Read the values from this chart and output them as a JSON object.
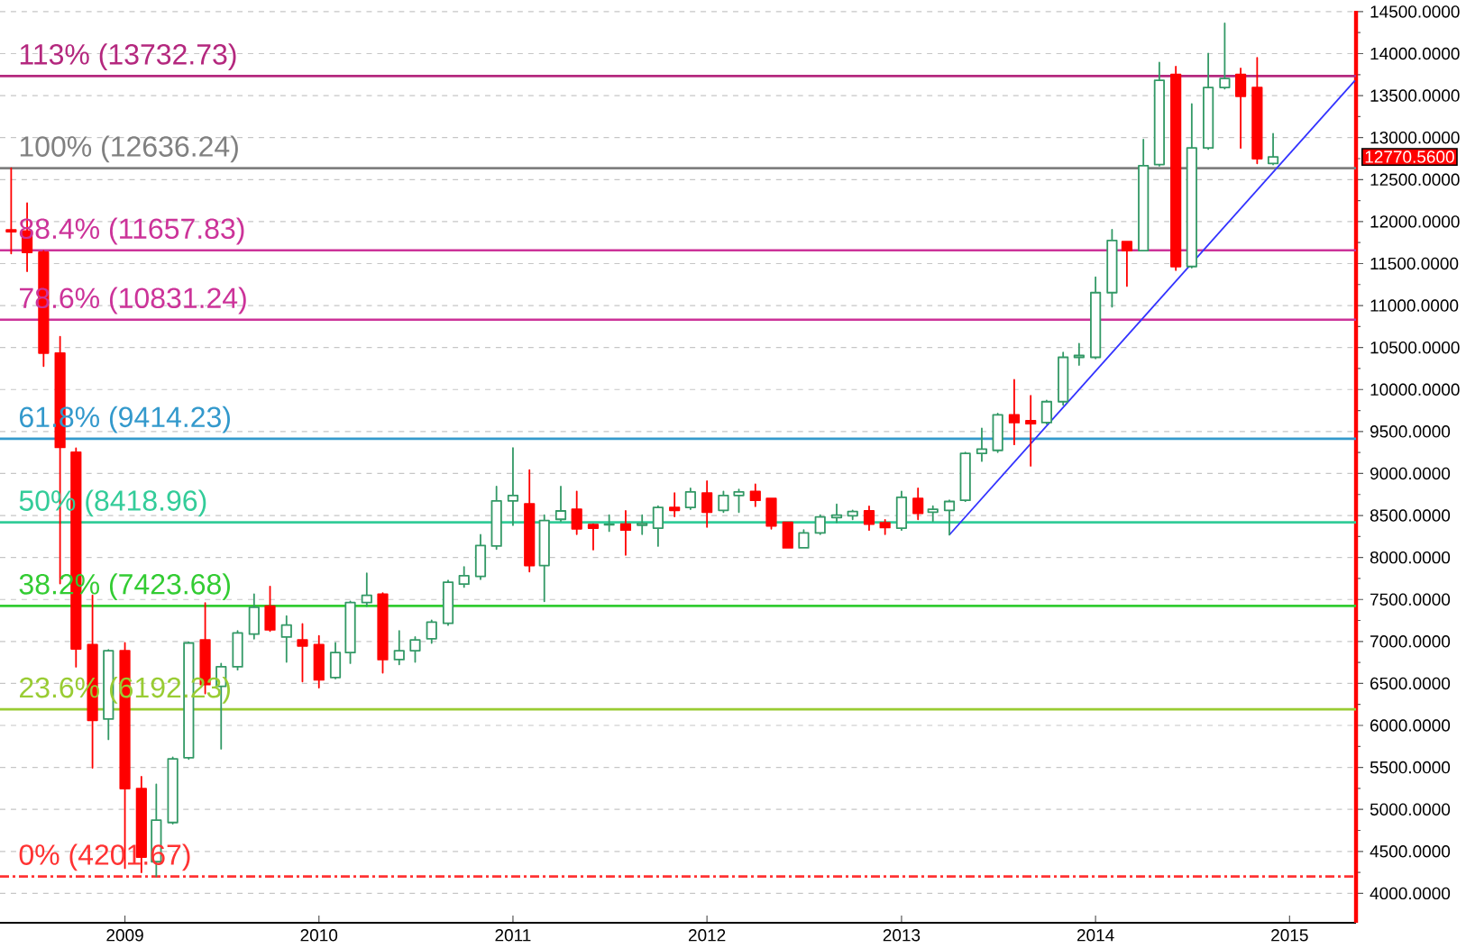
{
  "chart_data": {
    "type": "candlestick",
    "x": [
      "2008-06",
      "2008-07",
      "2008-08",
      "2008-09",
      "2008-10",
      "2008-11",
      "2008-12",
      "2009-01",
      "2009-02",
      "2009-03",
      "2009-04",
      "2009-05",
      "2009-06",
      "2009-07",
      "2009-08",
      "2009-09",
      "2009-10",
      "2009-11",
      "2009-12",
      "2010-01",
      "2010-02",
      "2010-03",
      "2010-04",
      "2010-05",
      "2010-06",
      "2010-07",
      "2010-08",
      "2010-09",
      "2010-10",
      "2010-11",
      "2010-12",
      "2011-01",
      "2011-02",
      "2011-03",
      "2011-04",
      "2011-05",
      "2011-06",
      "2011-07",
      "2011-08",
      "2011-09",
      "2011-10",
      "2011-11",
      "2011-12",
      "2012-01",
      "2012-02",
      "2012-03",
      "2012-04",
      "2012-05",
      "2012-06",
      "2012-07",
      "2012-08",
      "2012-09",
      "2012-10",
      "2012-11",
      "2012-12",
      "2013-01",
      "2013-02",
      "2013-03",
      "2013-04",
      "2013-05",
      "2013-06",
      "2013-07",
      "2013-08",
      "2013-09",
      "2013-10",
      "2013-11",
      "2013-12",
      "2014-01",
      "2014-02",
      "2014-03",
      "2014-04",
      "2014-05",
      "2014-06",
      "2014-07",
      "2014-08",
      "2014-09",
      "2014-10",
      "2014-11",
      "2014-12"
    ],
    "ohlc": [
      [
        11900,
        12636.24,
        11620,
        11880
      ],
      [
        11888,
        12220,
        11408,
        11634
      ],
      [
        11634,
        11650,
        10278,
        10434
      ],
      [
        10434,
        10630,
        7690,
        9311
      ],
      [
        9254,
        9300,
        6699,
        6911
      ],
      [
        6961,
        7549,
        5495,
        6062
      ],
      [
        6076,
        6900,
        5835,
        6890
      ],
      [
        6890,
        6982,
        4300,
        5248
      ],
      [
        5248,
        5389,
        4250,
        4433
      ],
      [
        4377,
        5297,
        4201.67,
        4872
      ],
      [
        4844,
        5620,
        4830,
        5602
      ],
      [
        5616,
        6990,
        5600,
        6982
      ],
      [
        7018,
        7457,
        6380,
        6487
      ],
      [
        6465,
        6735,
        5722,
        6699
      ],
      [
        6699,
        7124,
        6664,
        7102
      ],
      [
        7088,
        7563,
        7032,
        7407
      ],
      [
        7421,
        7655,
        7124,
        7138
      ],
      [
        7053,
        7301,
        6756,
        7195
      ],
      [
        7018,
        7209,
        6522,
        6947
      ],
      [
        6961,
        7067,
        6451,
        6543
      ],
      [
        6571,
        6982,
        6557,
        6868
      ],
      [
        6868,
        7478,
        6741,
        7463
      ],
      [
        7463,
        7811,
        7421,
        7549
      ],
      [
        7563,
        7577,
        6628,
        6784
      ],
      [
        6784,
        7124,
        6727,
        6890
      ],
      [
        6890,
        7053,
        6756,
        7018
      ],
      [
        7032,
        7252,
        6982,
        7230
      ],
      [
        7216,
        7726,
        7195,
        7704
      ],
      [
        7683,
        7888,
        7648,
        7782
      ],
      [
        7775,
        8271,
        7740,
        8143
      ],
      [
        8136,
        8844,
        8101,
        8674
      ],
      [
        8674,
        9304,
        8384,
        8738
      ],
      [
        8639,
        9042,
        7832,
        7904
      ],
      [
        7904,
        8504,
        7478,
        8441
      ],
      [
        8455,
        8844,
        8433,
        8554
      ],
      [
        8575,
        8787,
        8278,
        8341
      ],
      [
        8391,
        8398,
        8094,
        8349
      ],
      [
        8390,
        8504,
        8313,
        8395
      ],
      [
        8398,
        8554,
        8030,
        8327
      ],
      [
        8384,
        8504,
        8278,
        8405
      ],
      [
        8349,
        8611,
        8136,
        8596
      ],
      [
        8596,
        8766,
        8490,
        8561
      ],
      [
        8596,
        8823,
        8575,
        8780
      ],
      [
        8766,
        8908,
        8363,
        8540
      ],
      [
        8561,
        8787,
        8540,
        8738
      ],
      [
        8738,
        8809,
        8540,
        8780
      ],
      [
        8787,
        8872,
        8610,
        8681
      ],
      [
        8702,
        8702,
        8342,
        8377
      ],
      [
        8419,
        8419,
        8115,
        8115
      ],
      [
        8115,
        8327,
        8115,
        8292
      ],
      [
        8292,
        8504,
        8278,
        8483
      ],
      [
        8476,
        8632,
        8419,
        8504
      ],
      [
        8497,
        8561,
        8455,
        8547
      ],
      [
        8554,
        8610,
        8327,
        8398
      ],
      [
        8412,
        8448,
        8278,
        8356
      ],
      [
        8349,
        8787,
        8327,
        8717
      ],
      [
        8702,
        8823,
        8455,
        8526
      ],
      [
        8540,
        8611,
        8433,
        8575
      ],
      [
        8561,
        8681,
        8271,
        8667
      ],
      [
        8681,
        9250,
        8670,
        9240
      ],
      [
        9240,
        9537,
        9148,
        9290
      ],
      [
        9276,
        9713,
        9254,
        9699
      ],
      [
        9699,
        10116,
        9346,
        9607
      ],
      [
        9629,
        9925,
        9092,
        9593
      ],
      [
        9607,
        9869,
        9593,
        9855
      ],
      [
        9855,
        10441,
        9819,
        10384
      ],
      [
        10384,
        10547,
        10292,
        10406
      ],
      [
        10384,
        11338,
        10370,
        11154
      ],
      [
        11154,
        11903,
        10985,
        11775
      ],
      [
        11761,
        11761,
        11232,
        11655
      ],
      [
        11655,
        12976,
        11655,
        12665
      ],
      [
        12679,
        13894,
        12665,
        13682
      ],
      [
        13753,
        13845,
        11422,
        11465
      ],
      [
        11465,
        13400,
        11451,
        12877
      ],
      [
        12877,
        14000,
        12863,
        13597
      ],
      [
        13597,
        14360,
        13583,
        13703
      ],
      [
        13753,
        13823,
        12877,
        13492
      ],
      [
        13597,
        13951,
        12693,
        12750
      ],
      [
        12693,
        13047,
        12679,
        12770.56
      ]
    ],
    "colors": [
      "#ff0000",
      "#ff0000",
      "#ff0000",
      "#ff0000",
      "#ff0000",
      "#ff0000",
      "#339966",
      "#ff0000",
      "#ff0000",
      "#339966",
      "#339966",
      "#339966",
      "#ff0000",
      "#339966",
      "#339966",
      "#339966",
      "#ff0000",
      "#339966",
      "#ff0000",
      "#ff0000",
      "#339966",
      "#339966",
      "#339966",
      "#ff0000",
      "#339966",
      "#339966",
      "#339966",
      "#339966",
      "#339966",
      "#339966",
      "#339966",
      "#339966",
      "#ff0000",
      "#339966",
      "#339966",
      "#ff0000",
      "#ff0000",
      "#339966",
      "#ff0000",
      "#339966",
      "#339966",
      "#ff0000",
      "#339966",
      "#ff0000",
      "#339966",
      "#339966",
      "#ff0000",
      "#ff0000",
      "#ff0000",
      "#339966",
      "#339966",
      "#339966",
      "#339966",
      "#ff0000",
      "#ff0000",
      "#339966",
      "#ff0000",
      "#339966",
      "#339966",
      "#339966",
      "#339966",
      "#339966",
      "#ff0000",
      "#ff0000",
      "#339966",
      "#339966",
      "#339966",
      "#339966",
      "#339966",
      "#ff0000",
      "#339966",
      "#339966",
      "#ff0000",
      "#339966",
      "#339966",
      "#339966",
      "#ff0000",
      "#ff0000",
      "#339966"
    ],
    "series": [
      {
        "type": "line",
        "x": [
          "2013-04",
          "2015-05-04"
        ],
        "values": [
          8270,
          13680
        ],
        "color": "#3333ff"
      }
    ],
    "xlim": [
      "2008-05-11",
      "2015-05-06"
    ],
    "xticks": [
      "2009",
      "2010",
      "2011",
      "2012",
      "2013",
      "2014",
      "2015"
    ],
    "ylim": [
      3650,
      14510
    ],
    "yticks": [
      {
        "value": 4000,
        "label": "4000.0000"
      },
      {
        "value": 4500,
        "label": "4500.0000"
      },
      {
        "value": 5000,
        "label": "5000.0000"
      },
      {
        "value": 5500,
        "label": "5500.0000"
      },
      {
        "value": 6000,
        "label": "6000.0000"
      },
      {
        "value": 6500,
        "label": "6500.0000"
      },
      {
        "value": 7000,
        "label": "7000.0000"
      },
      {
        "value": 7500,
        "label": "7500.0000"
      },
      {
        "value": 8000,
        "label": "8000.0000"
      },
      {
        "value": 8500,
        "label": "8500.0000"
      },
      {
        "value": 9000,
        "label": "9000.0000"
      },
      {
        "value": 9500,
        "label": "9500.0000"
      },
      {
        "value": 10000,
        "label": "10000.0000"
      },
      {
        "value": 10500,
        "label": "10500.0000"
      },
      {
        "value": 11000,
        "label": "11000.0000"
      },
      {
        "value": 11500,
        "label": "11500.0000"
      },
      {
        "value": 12000,
        "label": "12000.0000"
      },
      {
        "value": 12500,
        "label": "12500.0000"
      },
      {
        "value": 13000,
        "label": "13000.0000"
      },
      {
        "value": 13500,
        "label": "13500.0000"
      },
      {
        "value": 14000,
        "label": "14000.0000"
      },
      {
        "value": 14500,
        "label": "14500.0000"
      }
    ],
    "grid": "y",
    "ref_lines": [
      {
        "axis": "y",
        "value": 13732.73,
        "label": "113% (13732.73)",
        "color": "#b4287e"
      },
      {
        "axis": "y",
        "value": 12636.24,
        "label": "100% (12636.24)",
        "color": "#808080"
      },
      {
        "axis": "y",
        "value": 11657.83,
        "label": "88.4% (11657.83)",
        "color": "#cc3399"
      },
      {
        "axis": "y",
        "value": 10831.24,
        "label": "78.6% (10831.24)",
        "color": "#cc3399"
      },
      {
        "axis": "y",
        "value": 9414.23,
        "label": "61.8% (9414.23)",
        "color": "#3399cc"
      },
      {
        "axis": "y",
        "value": 8418.96,
        "label": "50% (8418.96)",
        "color": "#33cc99"
      },
      {
        "axis": "y",
        "value": 7423.68,
        "label": "38.2% (7423.68)",
        "color": "#33cc33"
      },
      {
        "axis": "y",
        "value": 6192.23,
        "label": "23.6% (6192.23)",
        "color": "#99cc33"
      },
      {
        "axis": "y",
        "value": 4201.67,
        "label": "0% (4201.67)",
        "color": "#ff3333",
        "line_style": "dashdot"
      }
    ],
    "annotations": [
      "12770.5600"
    ]
  }
}
